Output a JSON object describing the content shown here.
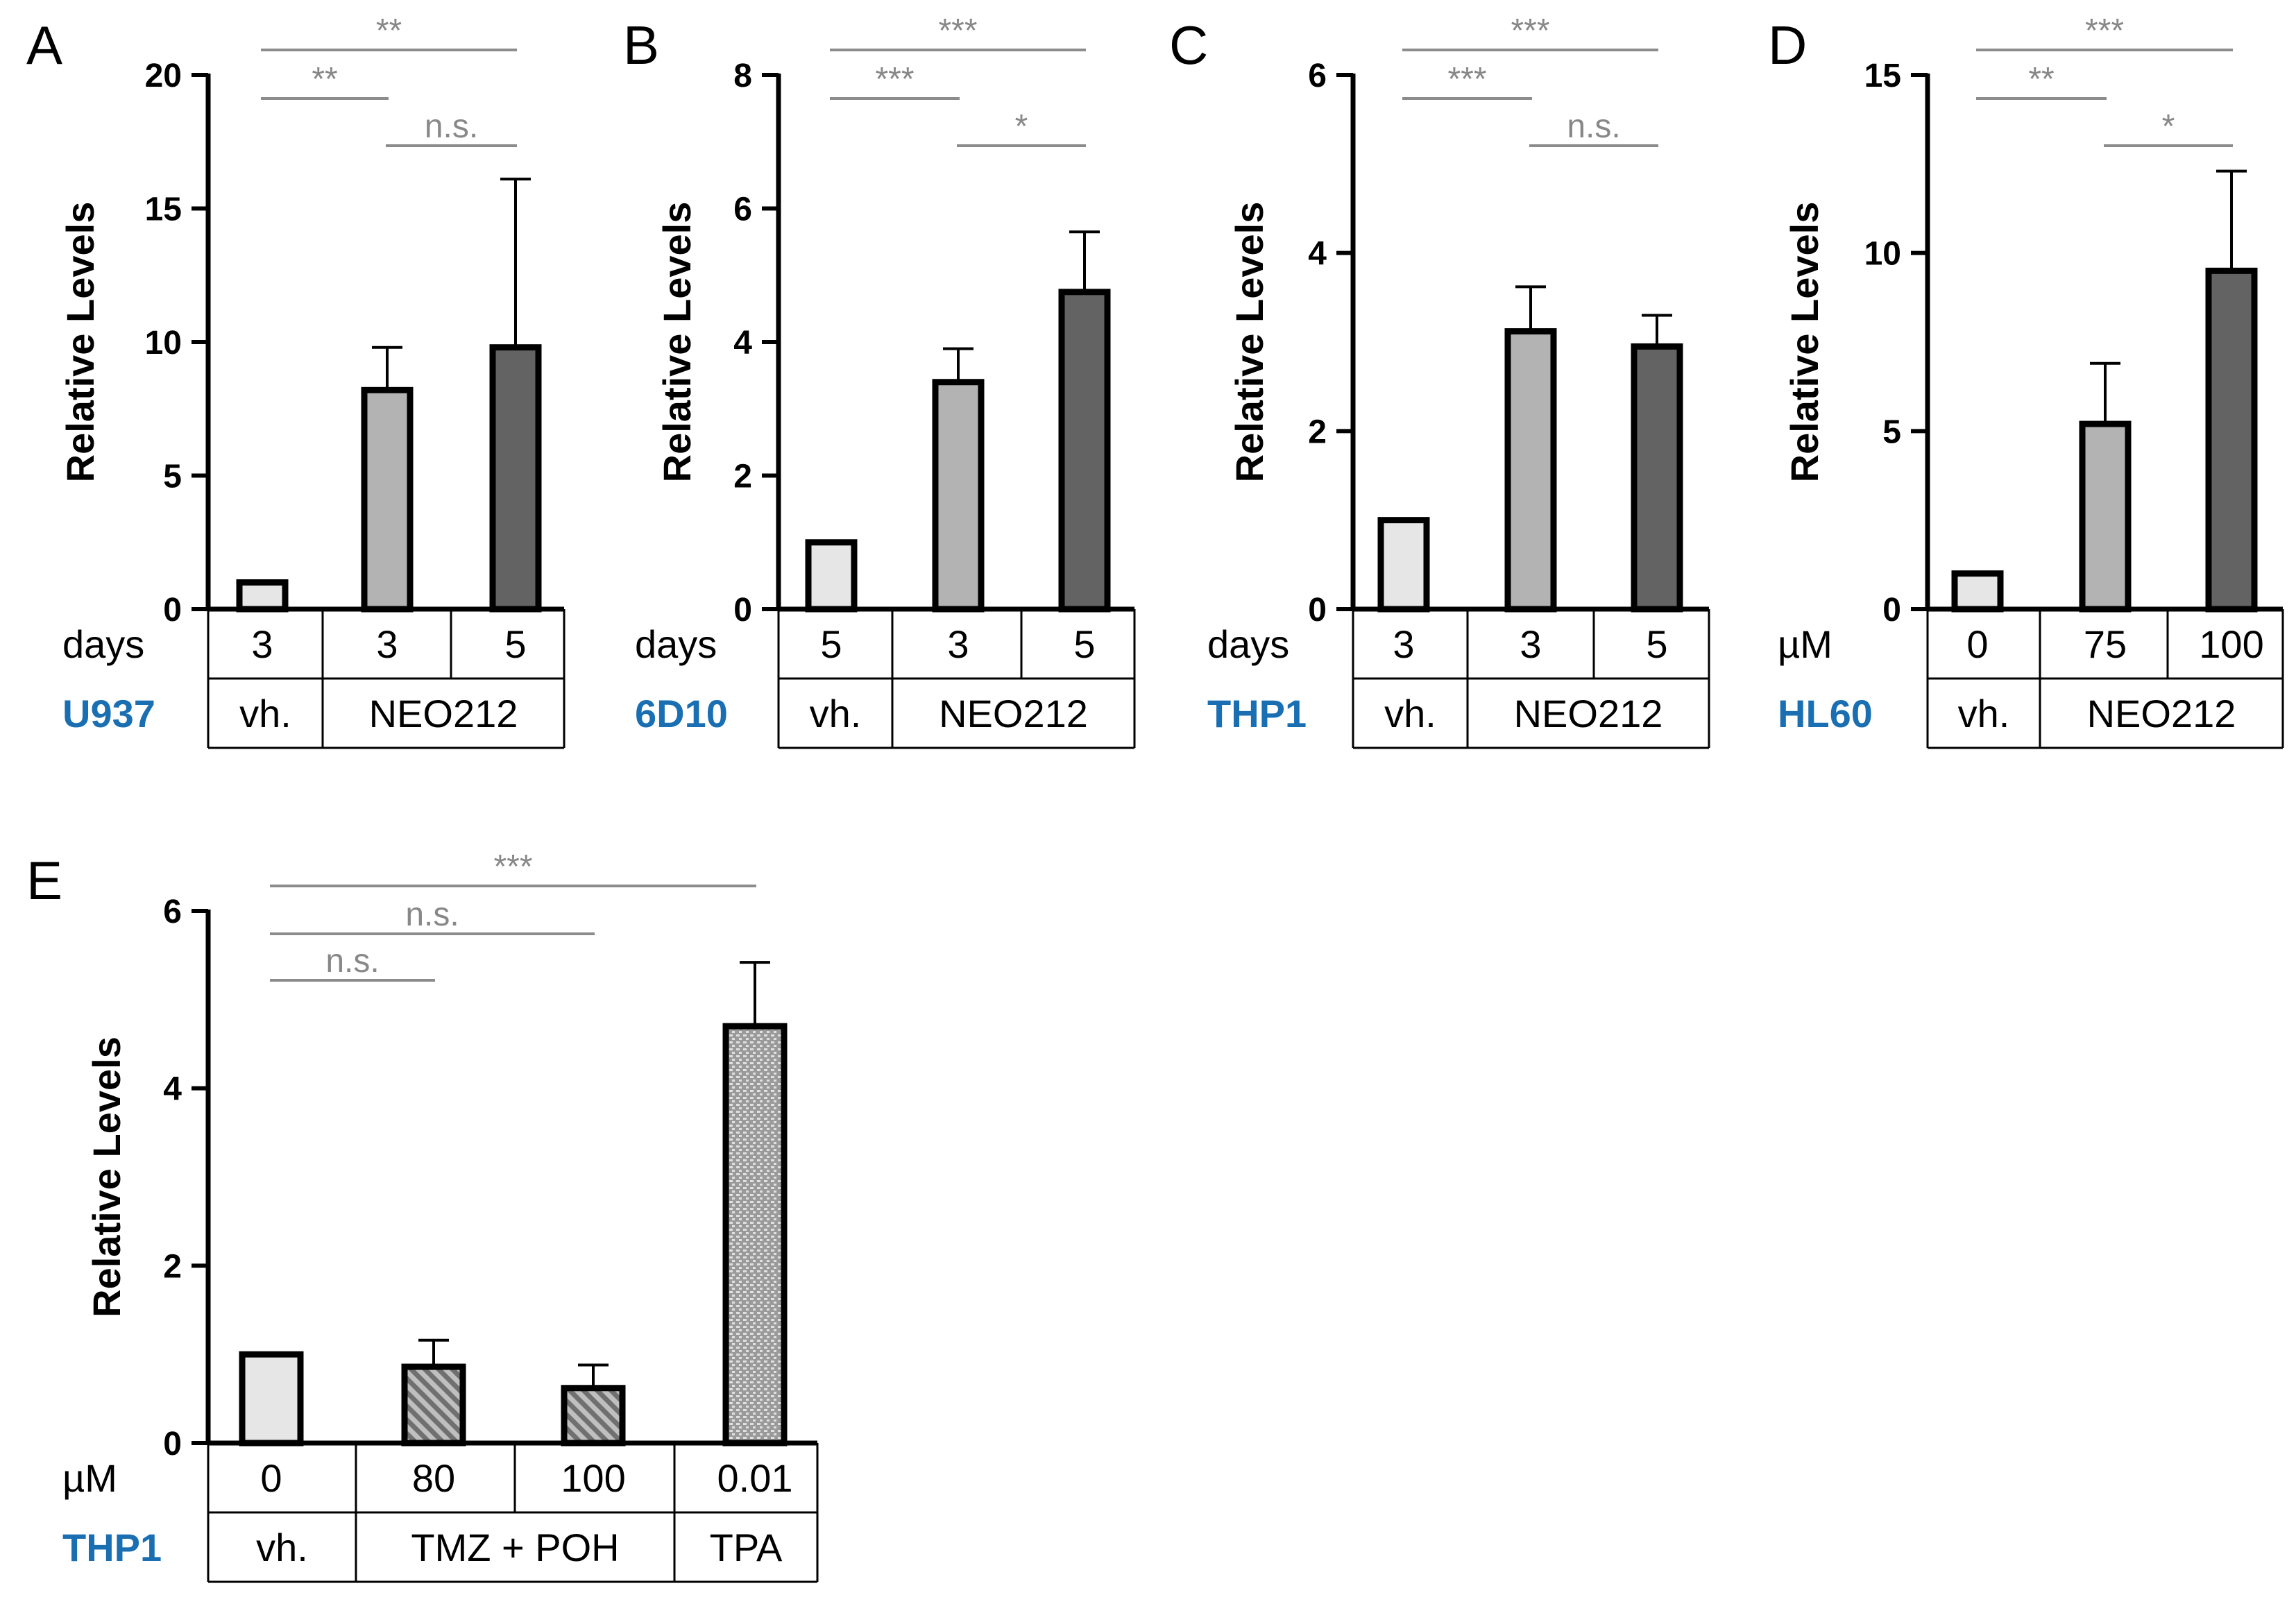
{
  "colors": {
    "vehicle": "#e6e6e6",
    "neo_low": "#b3b3b3",
    "neo_high": "#636363",
    "hatch": "#707070",
    "tpa": "#a6a6a6",
    "sig_line": "#8c8c8c",
    "cell_line_label": "#1a6fb3"
  },
  "chart_data": [
    {
      "panel": "A",
      "type": "bar",
      "ylabel": "Relative Levels",
      "ylim": [
        0,
        20
      ],
      "yticks": [
        "0",
        "5",
        "10",
        "15",
        "20"
      ],
      "ytick_values": [
        0,
        5,
        10,
        15,
        20
      ],
      "bars": [
        {
          "value": 1.0,
          "error": 0,
          "fill": "vehicle"
        },
        {
          "value": 8.2,
          "error": 1.6,
          "fill": "neo_low"
        },
        {
          "value": 9.8,
          "error": 6.3,
          "fill": "neo_high"
        }
      ],
      "row1_label": "days",
      "row1_values": [
        "3",
        "3",
        "5"
      ],
      "cell_line": "U937",
      "groups": [
        {
          "label": "vh.",
          "span": [
            0,
            0
          ]
        },
        {
          "label": "NEO212",
          "span": [
            1,
            2
          ]
        }
      ],
      "significance": [
        {
          "from": 0,
          "to": 2,
          "label": "**"
        },
        {
          "from": 0,
          "to": 1,
          "label": "**"
        },
        {
          "from": 1,
          "to": 2,
          "label": "n.s."
        }
      ]
    },
    {
      "panel": "B",
      "type": "bar",
      "ylabel": "Relative Levels",
      "ylim": [
        0,
        8
      ],
      "yticks": [
        "0",
        "2",
        "4",
        "6",
        "8"
      ],
      "ytick_values": [
        0,
        2,
        4,
        6,
        8
      ],
      "bars": [
        {
          "value": 1.0,
          "error": 0,
          "fill": "vehicle"
        },
        {
          "value": 3.4,
          "error": 0.5,
          "fill": "neo_low"
        },
        {
          "value": 4.75,
          "error": 0.9,
          "fill": "neo_high"
        }
      ],
      "row1_label": "days",
      "row1_values": [
        "5",
        "3",
        "5"
      ],
      "cell_line": "6D10",
      "groups": [
        {
          "label": "vh.",
          "span": [
            0,
            0
          ]
        },
        {
          "label": "NEO212",
          "span": [
            1,
            2
          ]
        }
      ],
      "significance": [
        {
          "from": 0,
          "to": 2,
          "label": "***"
        },
        {
          "from": 0,
          "to": 1,
          "label": "***"
        },
        {
          "from": 1,
          "to": 2,
          "label": "*"
        }
      ]
    },
    {
      "panel": "C",
      "type": "bar",
      "ylabel": "Relative Levels",
      "ylim": [
        0,
        6
      ],
      "yticks": [
        "0",
        "2",
        "4",
        "6"
      ],
      "ytick_values": [
        0,
        2,
        4,
        6
      ],
      "bars": [
        {
          "value": 1.0,
          "error": 0,
          "fill": "vehicle"
        },
        {
          "value": 3.12,
          "error": 0.5,
          "fill": "neo_low"
        },
        {
          "value": 2.95,
          "error": 0.35,
          "fill": "neo_high"
        }
      ],
      "row1_label": "days",
      "row1_values": [
        "3",
        "3",
        "5"
      ],
      "cell_line": "THP1",
      "groups": [
        {
          "label": "vh.",
          "span": [
            0,
            0
          ]
        },
        {
          "label": "NEO212",
          "span": [
            1,
            2
          ]
        }
      ],
      "significance": [
        {
          "from": 0,
          "to": 2,
          "label": "***"
        },
        {
          "from": 0,
          "to": 1,
          "label": "***"
        },
        {
          "from": 1,
          "to": 2,
          "label": "n.s."
        }
      ]
    },
    {
      "panel": "D",
      "type": "bar",
      "ylabel": "Relative Levels",
      "ylim": [
        0,
        15
      ],
      "yticks": [
        "0",
        "5",
        "10",
        "15"
      ],
      "ytick_values": [
        0,
        5,
        10,
        15
      ],
      "bars": [
        {
          "value": 1.0,
          "error": 0,
          "fill": "vehicle"
        },
        {
          "value": 5.2,
          "error": 1.7,
          "fill": "neo_low"
        },
        {
          "value": 9.5,
          "error": 2.8,
          "fill": "neo_high"
        }
      ],
      "row1_label": "µM",
      "row1_values": [
        "0",
        "75",
        "100"
      ],
      "cell_line": "HL60",
      "groups": [
        {
          "label": "vh.",
          "span": [
            0,
            0
          ]
        },
        {
          "label": "NEO212",
          "span": [
            1,
            2
          ]
        }
      ],
      "significance": [
        {
          "from": 0,
          "to": 2,
          "label": "***"
        },
        {
          "from": 0,
          "to": 1,
          "label": "**"
        },
        {
          "from": 1,
          "to": 2,
          "label": "*"
        }
      ]
    },
    {
      "panel": "E",
      "type": "bar",
      "ylabel": "Relative Levels",
      "ylim": [
        0,
        6
      ],
      "yticks": [
        "0",
        "2",
        "4",
        "6"
      ],
      "ytick_values": [
        0,
        2,
        4,
        6
      ],
      "bars": [
        {
          "value": 1.0,
          "error": 0,
          "fill": "vehicle"
        },
        {
          "value": 0.86,
          "error": 0.3,
          "fill": "hatch"
        },
        {
          "value": 0.62,
          "error": 0.26,
          "fill": "hatch"
        },
        {
          "value": 4.7,
          "error": 0.72,
          "fill": "tpa"
        }
      ],
      "row1_label": "µM",
      "row1_values": [
        "0",
        "80",
        "100",
        "0.01"
      ],
      "cell_line": "THP1",
      "groups": [
        {
          "label": "vh.",
          "span": [
            0,
            0
          ]
        },
        {
          "label": "TMZ + POH",
          "span": [
            1,
            2
          ]
        },
        {
          "label": "TPA",
          "span": [
            3,
            3
          ]
        }
      ],
      "significance": [
        {
          "from": 0,
          "to": 3,
          "label": "***"
        },
        {
          "from": 0,
          "to": 2,
          "label": "n.s."
        },
        {
          "from": 0,
          "to": 1,
          "label": "n.s."
        }
      ]
    }
  ]
}
